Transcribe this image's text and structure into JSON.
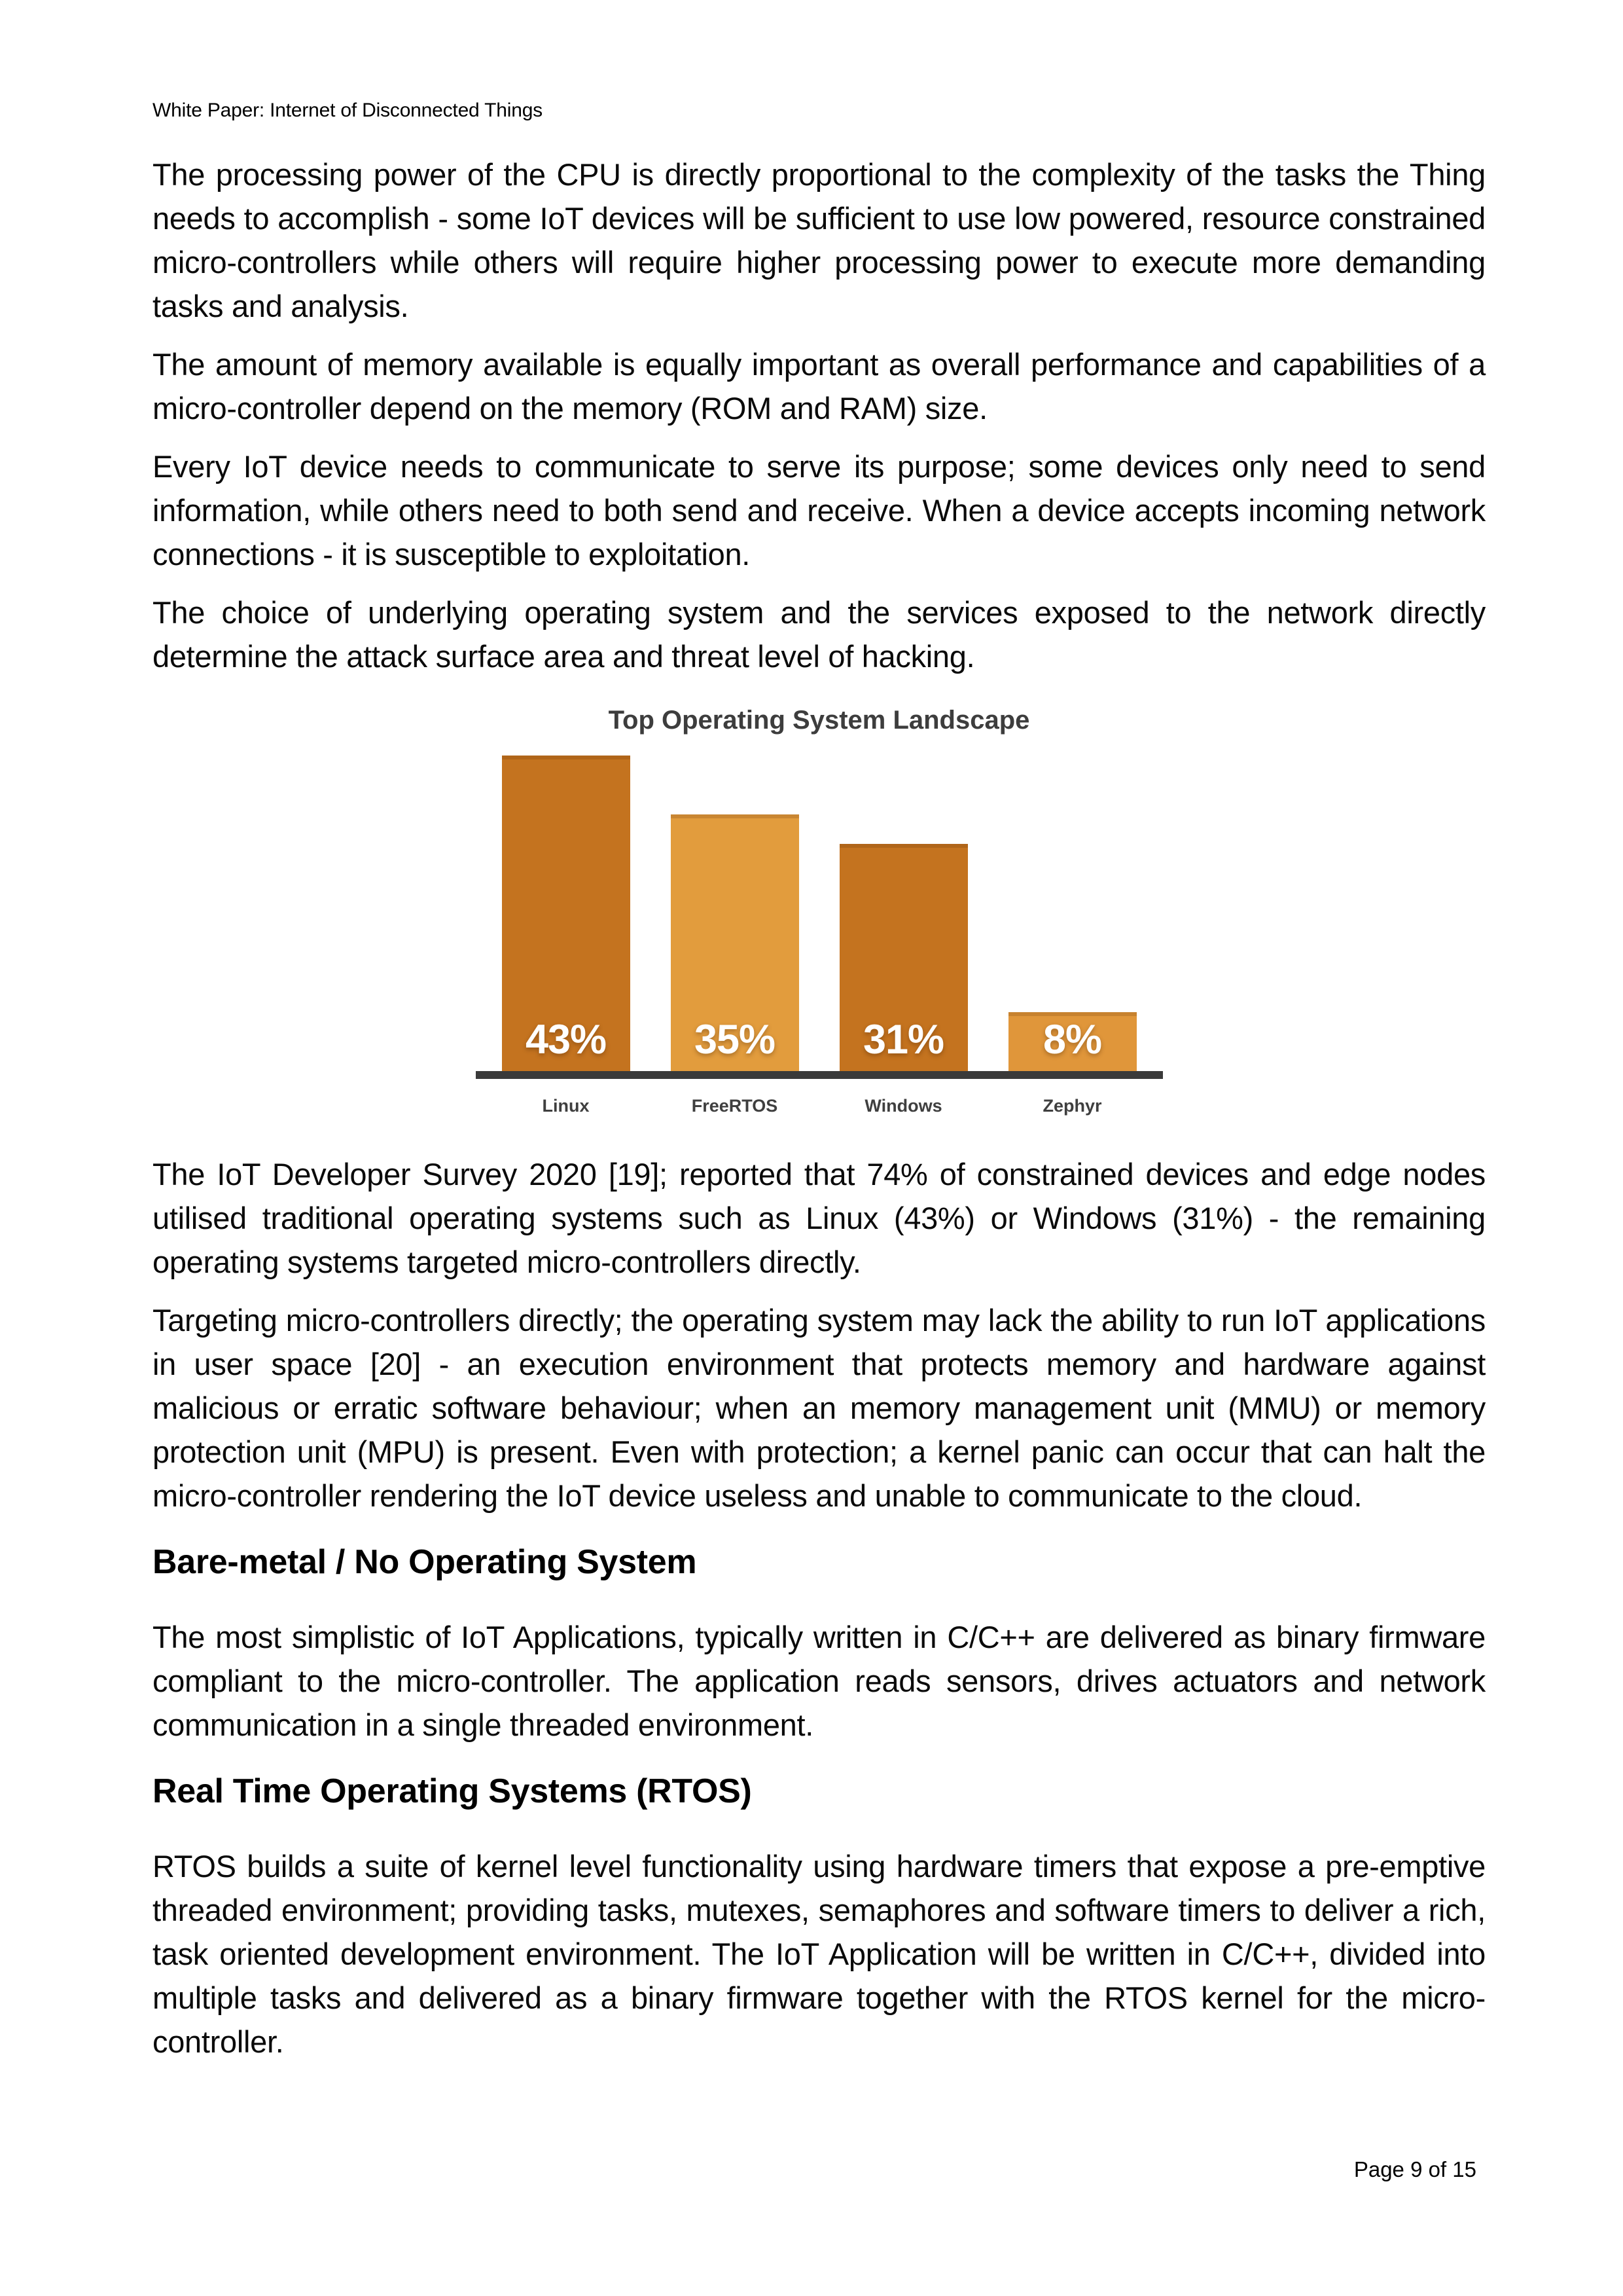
{
  "header": {
    "text": "White Paper: Internet of Disconnected Things"
  },
  "body": {
    "paragraphs_top": [
      "The processing power of the CPU is directly proportional to the complexity of the tasks the Thing needs to accomplish - some IoT devices will be sufficient to use low powered, resource constrained micro-controllers while others will require higher processing power to execute more demanding tasks and analysis.",
      "The amount of memory available is equally important as overall performance and capabilities of a micro-controller depend on the memory (ROM and RAM) size.",
      "Every IoT device needs to communicate to serve its purpose; some devices only need to send information, while others need to both send and receive. When a device accepts incoming network connections - it is susceptible to exploitation.",
      "The choice of underlying operating system and the services exposed to the network directly determine the attack surface area and threat level of hacking."
    ],
    "paragraphs_after_chart": [
      "The IoT Developer Survey 2020 [19]; reported that 74% of constrained devices and edge nodes utilised traditional operating systems such as Linux (43%) or Windows (31%) - the remaining operating systems targeted micro-controllers directly.",
      "Targeting micro-controllers directly; the operating system may lack the ability to run IoT applications in user space [20] - an execution environment that protects memory and hardware against malicious or erratic software behaviour; when an memory management unit (MMU) or memory protection unit (MPU) is present. Even with protection; a kernel panic can occur that can halt the micro-controller rendering the IoT device useless and unable to communicate to the cloud."
    ],
    "sections": [
      {
        "heading": "Bare-metal / No Operating System",
        "paragraph": "The most simplistic of IoT Applications, typically written in C/C++ are delivered as binary firmware compliant to the micro-controller. The application reads sensors, drives actuators and network communication in a single threaded environment."
      },
      {
        "heading": "Real Time Operating Systems (RTOS)",
        "paragraph": "RTOS builds a suite of kernel level functionality using hardware timers that expose a pre-emptive threaded environment; providing tasks, mutexes, semaphores and software timers to deliver a rich, task oriented development environment. The IoT Application will be written in C/C++, divided into multiple tasks and delivered as a binary firmware together with the RTOS kernel for the micro-controller."
      }
    ]
  },
  "chart_data": {
    "type": "bar",
    "title": "Top Operating System Landscape",
    "categories": [
      "Linux",
      "FreeRTOS",
      "Windows",
      "Zephyr"
    ],
    "values": [
      43,
      35,
      31,
      8
    ],
    "value_labels": [
      "43%",
      "35%",
      "31%",
      "8%"
    ],
    "bar_colors": [
      "#c4731f",
      "#e29c3d",
      "#c4731f",
      "#e0963a"
    ],
    "xlabel": "",
    "ylabel": "",
    "ylim": [
      0,
      43
    ],
    "grid": false,
    "legend_position": "none",
    "value_label_color": "#ffffff",
    "axis_line_color": "#3a3a3a",
    "title_color": "#3d3d3d",
    "category_label_color": "#3f3f3f"
  },
  "footer": {
    "text": "Page 9 of 15"
  }
}
